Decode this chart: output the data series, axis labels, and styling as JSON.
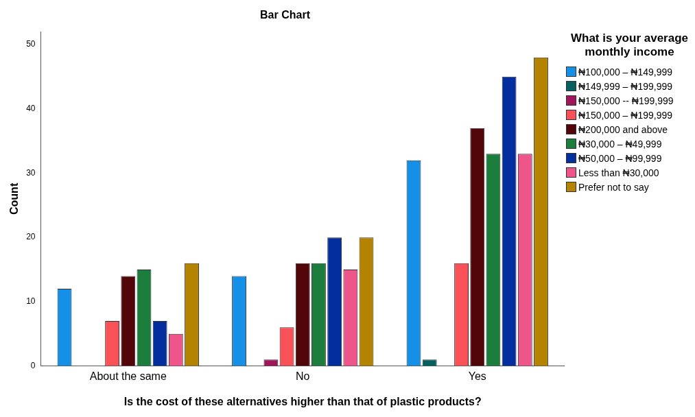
{
  "chart_data": {
    "type": "bar",
    "title": "Bar Chart",
    "xlabel": "Is the cost of these alternatives higher than that of plastic products?",
    "ylabel": "Count",
    "legend_title": "What is your average monthly income",
    "categories": [
      "About the same",
      "No",
      "Yes"
    ],
    "series": [
      {
        "name": "₦100,000 – ₦149,999",
        "color": "#1690e6",
        "values": [
          12,
          14,
          32
        ]
      },
      {
        "name": "₦149,999 – ₦199,999",
        "color": "#046060",
        "values": [
          null,
          null,
          1
        ]
      },
      {
        "name": "₦150,000 -- ₦199,999",
        "color": "#a0165a",
        "values": [
          null,
          1,
          null
        ]
      },
      {
        "name": "₦150,000 – ₦199,999",
        "color": "#f95158",
        "values": [
          7,
          6,
          16
        ]
      },
      {
        "name": "₦200,000 and above",
        "color": "#52060a",
        "values": [
          14,
          16,
          37
        ]
      },
      {
        "name": "₦30,000 – ₦49,999",
        "color": "#1b7e3c",
        "values": [
          15,
          16,
          33
        ]
      },
      {
        "name": "₦50,000 – ₦99,999",
        "color": "#022e9e",
        "values": [
          7,
          20,
          45
        ]
      },
      {
        "name": "Less than ₦30,000",
        "color": "#ee558a",
        "values": [
          5,
          15,
          33
        ]
      },
      {
        "name": "Prefer not to say",
        "color": "#b48300",
        "values": [
          16,
          20,
          48
        ]
      }
    ],
    "ylim": [
      0,
      52
    ],
    "yticks": [
      0,
      10,
      20,
      30,
      40,
      50
    ],
    "grid": false,
    "legend": "right"
  }
}
